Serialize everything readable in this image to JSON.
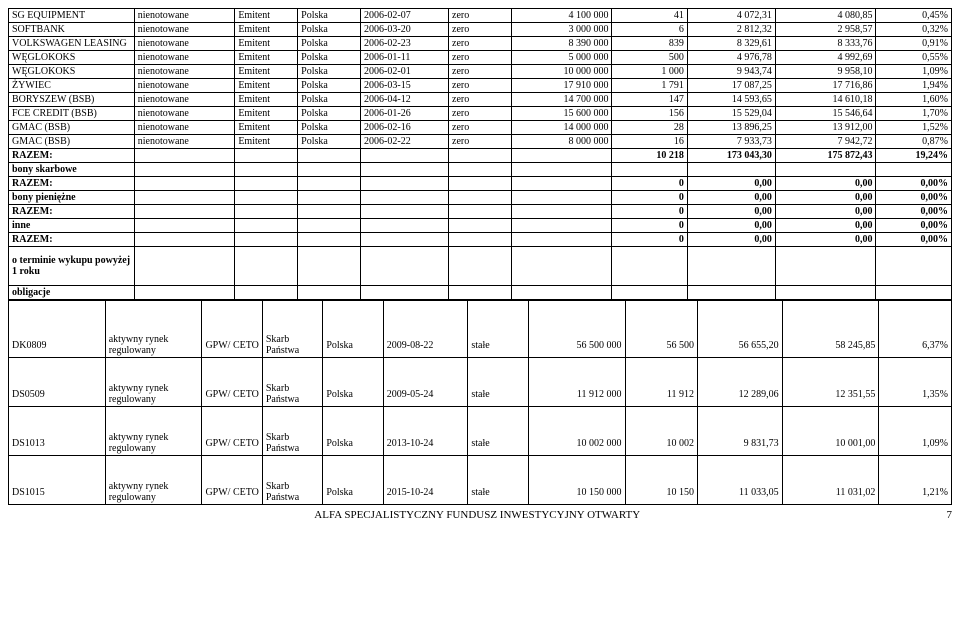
{
  "rows": [
    {
      "cells": [
        "SG EQUIPMENT",
        "nienotowane",
        "Emitent",
        "Polska",
        "2006-02-07",
        "zero",
        "4 100 000",
        "41",
        "4 072,31",
        "4 080,85",
        "0,45%"
      ],
      "bold": false
    },
    {
      "cells": [
        "SOFTBANK",
        "nienotowane",
        "Emitent",
        "Polska",
        "2006-03-20",
        "zero",
        "3 000 000",
        "6",
        "2 812,32",
        "2 958,57",
        "0,32%"
      ],
      "bold": false
    },
    {
      "cells": [
        "VOLKSWAGEN LEASING",
        "nienotowane",
        "Emitent",
        "Polska",
        "2006-02-23",
        "zero",
        "8 390 000",
        "839",
        "8 329,61",
        "8 333,76",
        "0,91%"
      ],
      "bold": false
    },
    {
      "cells": [
        "WĘGLOKOKS",
        "nienotowane",
        "Emitent",
        "Polska",
        "2006-01-11",
        "zero",
        "5 000 000",
        "500",
        "4 976,78",
        "4 992,69",
        "0,55%"
      ],
      "bold": false
    },
    {
      "cells": [
        "WĘGLOKOKS",
        "nienotowane",
        "Emitent",
        "Polska",
        "2006-02-01",
        "zero",
        "10 000 000",
        "1 000",
        "9 943,74",
        "9 958,10",
        "1,09%"
      ],
      "bold": false
    },
    {
      "cells": [
        "ŻYWIEC",
        "nienotowane",
        "Emitent",
        "Polska",
        "2006-03-15",
        "zero",
        "17 910 000",
        "1 791",
        "17 087,25",
        "17 716,86",
        "1,94%"
      ],
      "bold": false
    },
    {
      "cells": [
        "BORYSZEW (BSB)",
        "nienotowane",
        "Emitent",
        "Polska",
        "2006-04-12",
        "zero",
        "14 700 000",
        "147",
        "14 593,65",
        "14 610,18",
        "1,60%"
      ],
      "bold": false
    },
    {
      "cells": [
        "FCE CREDIT (BSB)",
        "nienotowane",
        "Emitent",
        "Polska",
        "2006-01-26",
        "zero",
        "15 600 000",
        "156",
        "15 529,04",
        "15 546,64",
        "1,70%"
      ],
      "bold": false
    },
    {
      "cells": [
        "GMAC (BSB)",
        "nienotowane",
        "Emitent",
        "Polska",
        "2006-02-16",
        "zero",
        "14 000 000",
        "28",
        "13 896,25",
        "13 912,00",
        "1,52%"
      ],
      "bold": false
    },
    {
      "cells": [
        "GMAC (BSB)",
        "nienotowane",
        "Emitent",
        "Polska",
        "2006-02-22",
        "zero",
        "8 000 000",
        "16",
        "7 933,73",
        "7 942,72",
        "0,87%"
      ],
      "bold": false
    },
    {
      "cells": [
        "RAZEM:",
        "",
        "",
        "",
        "",
        "",
        "",
        "10 218",
        "173 043,30",
        "175 872,43",
        "19,24%"
      ],
      "bold": true
    },
    {
      "cells": [
        "bony skarbowe",
        "",
        "",
        "",
        "",
        "",
        "",
        "",
        "",
        "",
        ""
      ],
      "bold": true,
      "firstOnly": true
    },
    {
      "cells": [
        "RAZEM:",
        "",
        "",
        "",
        "",
        "",
        "",
        "0",
        "0,00",
        "0,00",
        "0,00%"
      ],
      "bold": true
    },
    {
      "cells": [
        "bony pieniężne",
        "",
        "",
        "",
        "",
        "",
        "",
        "0",
        "0,00",
        "0,00",
        "0,00%"
      ],
      "bold": true,
      "firstOnly": true
    },
    {
      "cells": [
        "RAZEM:",
        "",
        "",
        "",
        "",
        "",
        "",
        "0",
        "0,00",
        "0,00",
        "0,00%"
      ],
      "bold": true
    },
    {
      "cells": [
        "inne",
        "",
        "",
        "",
        "",
        "",
        "",
        "0",
        "0,00",
        "0,00",
        "0,00%"
      ],
      "bold": true,
      "firstOnly": true
    },
    {
      "cells": [
        "RAZEM:",
        "",
        "",
        "",
        "",
        "",
        "",
        "0",
        "0,00",
        "0,00",
        "0,00%"
      ],
      "bold": true
    },
    {
      "cells": [
        "o terminie wykupu powyżej 1 roku",
        "",
        "",
        "",
        "",
        "",
        "",
        "",
        "",
        "",
        ""
      ],
      "bold": true,
      "firstOnly": true,
      "tall": true
    },
    {
      "cells": [
        "obligacje",
        "",
        "",
        "",
        "",
        "",
        "",
        "",
        "",
        "",
        ""
      ],
      "bold": true,
      "firstOnly": true
    }
  ],
  "gapRows": [
    {
      "cells": [
        "DK0809",
        "aktywny rynek regulowany",
        "GPW/ CETO",
        "Skarb Państwa",
        "Polska",
        "2009-08-22",
        "stałe",
        "56 500 000",
        "56 500",
        "56 655,20",
        "58 245,85",
        "6,37%"
      ]
    },
    {
      "cells": [
        "DS0509",
        "aktywny rynek regulowany",
        "GPW/ CETO",
        "Skarb Państwa",
        "Polska",
        "2009-05-24",
        "stałe",
        "11 912 000",
        "11 912",
        "12 289,06",
        "12 351,55",
        "1,35%"
      ]
    },
    {
      "cells": [
        "DS1013",
        "aktywny rynek regulowany",
        "GPW/ CETO",
        "Skarb Państwa",
        "Polska",
        "2013-10-24",
        "stałe",
        "10 002 000",
        "10 002",
        "9 831,73",
        "10 001,00",
        "1,09%"
      ]
    },
    {
      "cells": [
        "DS1015",
        "aktywny rynek regulowany",
        "GPW/ CETO",
        "Skarb Państwa",
        "Polska",
        "2015-10-24",
        "stałe",
        "10 150 000",
        "10 150",
        "11 033,05",
        "11 031,02",
        "1,21%"
      ]
    }
  ],
  "footer": "ALFA SPECJALISTYCZNY FUNDUSZ INWESTYCYJNY OTWARTY",
  "pageNum": "7"
}
